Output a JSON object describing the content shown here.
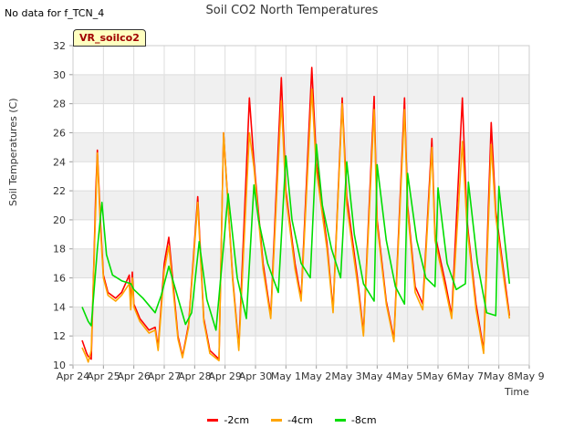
{
  "header": {
    "no_data_note": "No data for f_TCN_4",
    "title": "Soil CO2 North Temperatures",
    "tag": "VR_soilco2"
  },
  "chart_data": {
    "type": "line",
    "title": "Soil CO2 North Temperatures",
    "xlabel": "Time",
    "ylabel": "Soil Temperatures (C)",
    "ylim": [
      10,
      32
    ],
    "yticks": [
      10,
      12,
      14,
      16,
      18,
      20,
      22,
      24,
      26,
      28,
      30,
      32
    ],
    "xlim": [
      0,
      15
    ],
    "xtick_labels": [
      "Apr 24",
      "Apr 25",
      "Apr 26",
      "Apr 27",
      "Apr 28",
      "Apr 29",
      "Apr 30",
      "May 1",
      "May 2",
      "May 3",
      "May 4",
      "May 5",
      "May 6",
      "May 7",
      "May 8",
      "May 9"
    ],
    "grid": true,
    "legend_position": "bottom",
    "series": [
      {
        "name": "-2cm",
        "color": "#ff0000",
        "x": [
          0.3,
          0.45,
          0.5,
          0.6,
          0.75,
          0.8,
          0.9,
          1.0,
          1.15,
          1.4,
          1.6,
          1.85,
          1.9,
          1.95,
          2.0,
          2.2,
          2.5,
          2.7,
          2.8,
          3.0,
          3.15,
          3.45,
          3.6,
          3.8,
          4.1,
          4.3,
          4.5,
          4.8,
          4.95,
          5.25,
          5.45,
          5.8,
          5.95,
          6.25,
          6.5,
          6.85,
          7.0,
          7.3,
          7.5,
          7.85,
          8.0,
          8.35,
          8.55,
          8.85,
          9.0,
          9.35,
          9.55,
          9.9,
          10.0,
          10.3,
          10.55,
          10.9,
          11.0,
          11.25,
          11.5,
          11.8,
          11.9,
          12.25,
          12.45,
          12.8,
          12.95,
          13.25,
          13.5,
          13.75,
          13.9,
          14.2,
          14.35
        ],
        "y": [
          11.7,
          10.8,
          10.6,
          10.4,
          22.0,
          24.8,
          20.0,
          16.2,
          15.0,
          14.6,
          15.0,
          16.2,
          14.0,
          16.4,
          14.2,
          13.2,
          12.4,
          12.6,
          11.2,
          17.0,
          18.8,
          12.0,
          10.6,
          12.8,
          21.6,
          13.2,
          11.0,
          10.4,
          26.0,
          16.0,
          11.2,
          28.4,
          24.0,
          17.0,
          13.4,
          29.8,
          22.0,
          17.0,
          14.6,
          30.5,
          24.0,
          18.4,
          13.8,
          28.4,
          21.6,
          16.0,
          12.2,
          28.5,
          20.0,
          14.4,
          11.8,
          28.4,
          21.0,
          15.4,
          14.2,
          25.6,
          19.0,
          15.6,
          13.4,
          28.4,
          20.0,
          14.2,
          11.0,
          26.7,
          20.6,
          15.8,
          13.4
        ]
      },
      {
        "name": "-4cm",
        "color": "#ffa500",
        "x": [
          0.3,
          0.45,
          0.5,
          0.6,
          0.75,
          0.8,
          0.9,
          1.0,
          1.15,
          1.4,
          1.6,
          1.85,
          1.9,
          1.95,
          2.0,
          2.2,
          2.5,
          2.7,
          2.8,
          3.0,
          3.15,
          3.45,
          3.6,
          3.8,
          4.1,
          4.3,
          4.5,
          4.8,
          4.95,
          5.25,
          5.45,
          5.8,
          5.95,
          6.25,
          6.5,
          6.85,
          7.0,
          7.3,
          7.5,
          7.85,
          8.0,
          8.35,
          8.55,
          8.85,
          9.0,
          9.35,
          9.55,
          9.9,
          10.0,
          10.3,
          10.55,
          10.9,
          11.0,
          11.25,
          11.5,
          11.8,
          11.9,
          12.25,
          12.45,
          12.8,
          12.95,
          13.25,
          13.5,
          13.75,
          13.9,
          14.2,
          14.35
        ],
        "y": [
          11.2,
          10.5,
          10.2,
          11.0,
          21.0,
          24.6,
          19.5,
          16.0,
          14.8,
          14.4,
          14.8,
          15.6,
          13.8,
          16.0,
          14.0,
          13.0,
          12.2,
          12.4,
          11.0,
          16.5,
          18.2,
          11.8,
          10.5,
          12.6,
          21.2,
          13.0,
          10.8,
          10.3,
          26.0,
          15.8,
          11.0,
          26.0,
          23.6,
          16.6,
          13.2,
          28.2,
          21.6,
          16.6,
          14.4,
          29.0,
          23.4,
          18.0,
          13.6,
          28.0,
          21.0,
          15.6,
          12.0,
          27.6,
          19.6,
          14.2,
          11.6,
          27.6,
          20.6,
          15.0,
          13.8,
          25.0,
          18.6,
          15.2,
          13.2,
          25.4,
          19.6,
          13.8,
          10.8,
          25.2,
          20.2,
          15.4,
          13.2
        ]
      },
      {
        "name": "-8cm",
        "color": "#00dd00",
        "x": [
          0.3,
          0.5,
          0.6,
          0.8,
          0.95,
          1.1,
          1.3,
          1.6,
          1.9,
          2.0,
          2.3,
          2.7,
          2.9,
          3.15,
          3.4,
          3.7,
          3.9,
          4.15,
          4.4,
          4.7,
          4.9,
          5.1,
          5.4,
          5.7,
          5.95,
          6.1,
          6.4,
          6.75,
          7.0,
          7.2,
          7.5,
          7.8,
          8.0,
          8.2,
          8.5,
          8.8,
          9.0,
          9.25,
          9.55,
          9.9,
          10.0,
          10.3,
          10.6,
          10.9,
          11.0,
          11.3,
          11.6,
          11.9,
          12.0,
          12.3,
          12.6,
          12.9,
          13.0,
          13.3,
          13.6,
          13.9,
          14.0,
          14.35
        ],
        "y": [
          14.0,
          13.0,
          12.7,
          18.0,
          21.2,
          17.6,
          16.2,
          15.8,
          15.6,
          15.2,
          14.6,
          13.6,
          14.8,
          16.8,
          15.0,
          12.8,
          13.6,
          18.5,
          14.5,
          12.4,
          17.0,
          21.8,
          16.0,
          13.2,
          22.4,
          20.0,
          17.0,
          15.0,
          24.4,
          20.0,
          17.0,
          16.0,
          25.2,
          21.0,
          18.0,
          16.0,
          24.0,
          19.0,
          15.6,
          14.4,
          23.8,
          18.6,
          15.4,
          14.2,
          23.2,
          18.6,
          16.0,
          15.4,
          22.2,
          17.0,
          15.2,
          15.6,
          22.6,
          17.0,
          13.6,
          13.4,
          22.3,
          15.6
        ]
      }
    ]
  }
}
